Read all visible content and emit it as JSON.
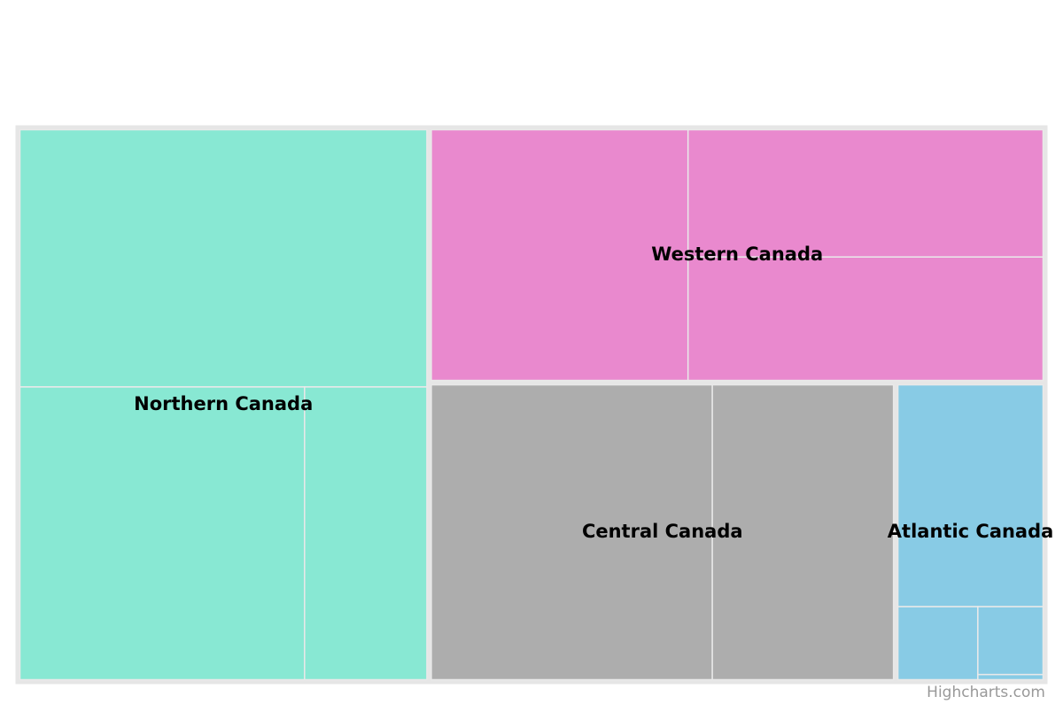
{
  "chart_data": {
    "type": "treemap",
    "title": "",
    "regions": [
      {
        "name": "Northern Canada",
        "color": "#88e8d3",
        "children": [
          {
            "name": "",
            "value": 1520
          },
          {
            "name": "",
            "value": 1210
          },
          {
            "name": "",
            "value": 520
          }
        ]
      },
      {
        "name": "Western Canada",
        "color": "#e989ce",
        "children": [
          {
            "name": "",
            "value": 940
          },
          {
            "name": "",
            "value": 660
          },
          {
            "name": "",
            "value": 640
          }
        ]
      },
      {
        "name": "Central Canada",
        "color": "#adadad",
        "children": [
          {
            "name": "",
            "value": 1210
          },
          {
            "name": "",
            "value": 780
          }
        ]
      },
      {
        "name": "Atlantic Canada",
        "color": "#88cbe5",
        "children": [
          {
            "name": "",
            "value": 480
          },
          {
            "name": "",
            "value": 87
          },
          {
            "name": "",
            "value": 66
          },
          {
            "name": "",
            "value": 5
          }
        ]
      }
    ],
    "colors": {
      "region_border": "#e6e6e6",
      "leaf_border": "#e9e9e9",
      "label": "#000000"
    }
  },
  "credits": "Highcharts.com"
}
